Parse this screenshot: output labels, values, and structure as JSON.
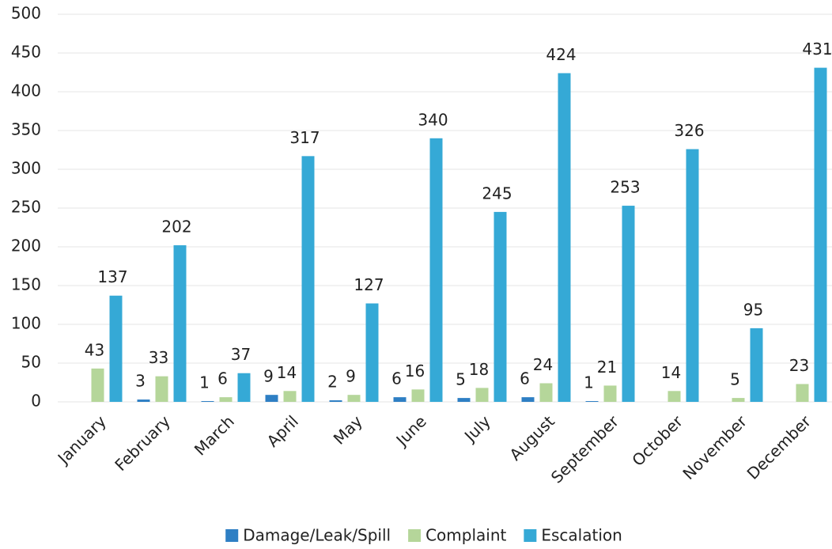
{
  "chart_data": {
    "type": "bar",
    "categories": [
      "January",
      "February",
      "March",
      "April",
      "May",
      "June",
      "July",
      "August",
      "September",
      "October",
      "November",
      "December"
    ],
    "series": [
      {
        "name": "Damage/Leak/Spill",
        "color": "#2e7fc4",
        "values": [
          null,
          3,
          1,
          9,
          2,
          6,
          5,
          6,
          1,
          null,
          null,
          null
        ]
      },
      {
        "name": "Complaint",
        "color": "#b5d69a",
        "values": [
          43,
          33,
          6,
          14,
          9,
          16,
          18,
          24,
          21,
          14,
          5,
          23
        ]
      },
      {
        "name": "Escalation",
        "color": "#35a9d6",
        "values": [
          137,
          202,
          37,
          317,
          127,
          340,
          245,
          424,
          253,
          326,
          95,
          431
        ]
      }
    ],
    "ylim": [
      0,
      500
    ],
    "yticks": [
      0,
      50,
      100,
      150,
      200,
      250,
      300,
      350,
      400,
      450,
      500
    ],
    "grid": true,
    "legend": "bottom"
  }
}
